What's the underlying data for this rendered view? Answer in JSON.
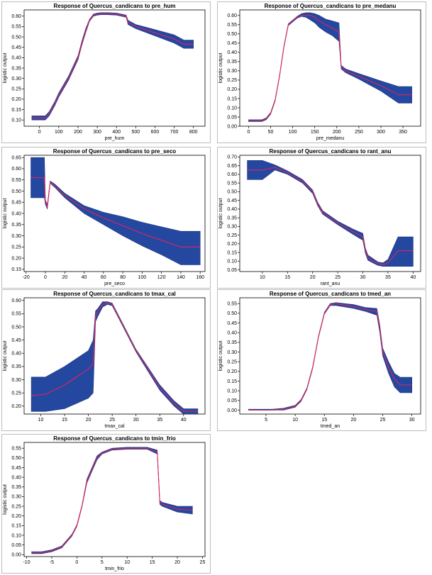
{
  "colors": {
    "band": "#2447a0",
    "band_edge": "#1b357e",
    "mean": "#e0245e"
  },
  "chart_data": [
    {
      "type": "line",
      "title": "Response of Quercus_candicans to pre_hum",
      "xlabel": "pre_hum",
      "ylabel": "logistic output",
      "xlim": [
        -80,
        860
      ],
      "ylim": [
        0.07,
        0.63
      ],
      "xticks": [
        0,
        100,
        200,
        300,
        400,
        500,
        600,
        700,
        800
      ],
      "yticks": [
        0.1,
        0.15,
        0.2,
        0.25,
        0.3,
        0.35,
        0.4,
        0.45,
        0.5,
        0.55,
        0.6
      ],
      "series": [
        {
          "x": [
            -40,
            30,
            50,
            80,
            100,
            150,
            200,
            220,
            240,
            260,
            280,
            300,
            320,
            350,
            400,
            450,
            460,
            470,
            500,
            600,
            700,
            750,
            800
          ],
          "mean": [
            0.11,
            0.11,
            0.13,
            0.18,
            0.22,
            0.3,
            0.4,
            0.47,
            0.53,
            0.58,
            0.605,
            0.61,
            0.612,
            0.612,
            0.61,
            0.6,
            0.57,
            0.565,
            0.55,
            0.52,
            0.49,
            0.465,
            0.465
          ],
          "lower": [
            0.1,
            0.1,
            0.12,
            0.17,
            0.21,
            0.29,
            0.39,
            0.46,
            0.52,
            0.575,
            0.6,
            0.605,
            0.607,
            0.607,
            0.605,
            0.595,
            0.56,
            0.555,
            0.54,
            0.505,
            0.47,
            0.445,
            0.445
          ],
          "upper": [
            0.12,
            0.12,
            0.14,
            0.19,
            0.23,
            0.31,
            0.41,
            0.48,
            0.54,
            0.585,
            0.61,
            0.615,
            0.617,
            0.617,
            0.615,
            0.605,
            0.58,
            0.575,
            0.56,
            0.535,
            0.51,
            0.485,
            0.485
          ]
        }
      ]
    },
    {
      "type": "line",
      "title": "Response of Quercus_candicans to pre_medanu",
      "xlabel": "pre_medanu",
      "ylabel": "logistic output",
      "xlim": [
        -20,
        390
      ],
      "ylim": [
        0.0,
        0.63
      ],
      "xticks": [
        0,
        50,
        100,
        150,
        200,
        250,
        300,
        350
      ],
      "yticks": [
        0.0,
        0.05,
        0.1,
        0.15,
        0.2,
        0.25,
        0.3,
        0.35,
        0.4,
        0.45,
        0.5,
        0.55,
        0.6
      ],
      "series": [
        {
          "x": [
            0,
            30,
            40,
            50,
            60,
            70,
            80,
            90,
            100,
            110,
            120,
            130,
            140,
            150,
            160,
            175,
            190,
            205,
            210,
            220,
            250,
            300,
            340,
            370
          ],
          "mean": [
            0.03,
            0.03,
            0.04,
            0.07,
            0.14,
            0.27,
            0.43,
            0.55,
            0.57,
            0.59,
            0.6,
            0.6,
            0.6,
            0.59,
            0.57,
            0.55,
            0.53,
            0.51,
            0.32,
            0.3,
            0.27,
            0.22,
            0.17,
            0.17
          ],
          "lower": [
            0.025,
            0.025,
            0.035,
            0.065,
            0.135,
            0.265,
            0.425,
            0.545,
            0.565,
            0.585,
            0.595,
            0.59,
            0.575,
            0.56,
            0.535,
            0.51,
            0.49,
            0.46,
            0.31,
            0.29,
            0.255,
            0.19,
            0.125,
            0.125
          ],
          "upper": [
            0.035,
            0.035,
            0.045,
            0.075,
            0.145,
            0.275,
            0.435,
            0.555,
            0.575,
            0.595,
            0.61,
            0.615,
            0.615,
            0.61,
            0.6,
            0.58,
            0.57,
            0.56,
            0.33,
            0.31,
            0.285,
            0.245,
            0.215,
            0.215
          ]
        }
      ]
    },
    {
      "type": "line",
      "title": "Response of Quercus_candicans to pre_seco",
      "xlabel": "pre_seco",
      "ylabel": "logistic output",
      "xlim": [
        -22,
        165
      ],
      "ylim": [
        0.14,
        0.66
      ],
      "xticks": [
        -20,
        0,
        20,
        40,
        60,
        80,
        100,
        120,
        140,
        160
      ],
      "yticks": [
        0.15,
        0.2,
        0.25,
        0.3,
        0.35,
        0.4,
        0.45,
        0.5,
        0.55,
        0.6,
        0.65
      ],
      "series": [
        {
          "x": [
            -15,
            -1,
            0,
            2,
            5,
            10,
            20,
            40,
            60,
            80,
            100,
            120,
            140,
            160
          ],
          "mean": [
            0.56,
            0.56,
            0.45,
            0.43,
            0.54,
            0.52,
            0.48,
            0.42,
            0.38,
            0.345,
            0.31,
            0.28,
            0.25,
            0.25
          ],
          "lower": [
            0.47,
            0.47,
            0.44,
            0.42,
            0.535,
            0.515,
            0.47,
            0.4,
            0.35,
            0.3,
            0.255,
            0.215,
            0.17,
            0.17
          ],
          "upper": [
            0.65,
            0.65,
            0.46,
            0.44,
            0.545,
            0.53,
            0.49,
            0.435,
            0.405,
            0.385,
            0.36,
            0.34,
            0.32,
            0.32
          ]
        }
      ]
    },
    {
      "type": "line",
      "title": "Response of Quercus_candicans to rant_anu",
      "xlabel": "rant_anu",
      "ylabel": "logistic output",
      "xlim": [
        5.5,
        41.5
      ],
      "ylim": [
        0.04,
        0.71
      ],
      "xticks": [
        10,
        15,
        20,
        25,
        30,
        35,
        40
      ],
      "yticks": [
        0.05,
        0.1,
        0.15,
        0.2,
        0.25,
        0.3,
        0.35,
        0.4,
        0.45,
        0.5,
        0.55,
        0.6,
        0.65,
        0.7
      ],
      "series": [
        {
          "x": [
            7,
            10,
            12.5,
            15,
            18,
            20,
            21,
            22,
            25,
            28,
            30,
            30.5,
            31,
            32,
            33,
            34,
            35,
            37,
            40
          ],
          "mean": [
            0.625,
            0.625,
            0.64,
            0.61,
            0.56,
            0.5,
            0.43,
            0.38,
            0.32,
            0.27,
            0.24,
            0.16,
            0.12,
            0.1,
            0.085,
            0.08,
            0.09,
            0.16,
            0.16
          ],
          "lower": [
            0.57,
            0.57,
            0.625,
            0.6,
            0.55,
            0.49,
            0.42,
            0.37,
            0.31,
            0.255,
            0.22,
            0.145,
            0.105,
            0.09,
            0.075,
            0.07,
            0.07,
            0.07,
            0.07
          ],
          "upper": [
            0.68,
            0.68,
            0.655,
            0.62,
            0.57,
            0.51,
            0.44,
            0.39,
            0.33,
            0.285,
            0.26,
            0.175,
            0.135,
            0.115,
            0.095,
            0.09,
            0.11,
            0.24,
            0.24
          ]
        }
      ]
    },
    {
      "type": "line",
      "title": "Response of Quercus_candicans to tmax_cal",
      "xlabel": "tmax_cal",
      "ylabel": "logistic output",
      "xlim": [
        6.5,
        44.5
      ],
      "ylim": [
        0.17,
        0.61
      ],
      "xticks": [
        10,
        15,
        20,
        25,
        30,
        35,
        40
      ],
      "yticks": [
        0.2,
        0.25,
        0.3,
        0.35,
        0.4,
        0.45,
        0.5,
        0.55,
        0.6
      ],
      "series": [
        {
          "x": [
            8,
            11,
            15,
            20,
            21,
            21.5,
            22,
            23,
            24,
            25,
            26,
            30,
            35,
            38,
            40,
            43
          ],
          "mean": [
            0.24,
            0.245,
            0.28,
            0.34,
            0.36,
            0.54,
            0.56,
            0.585,
            0.59,
            0.585,
            0.55,
            0.41,
            0.27,
            0.21,
            0.18,
            0.18
          ],
          "lower": [
            0.18,
            0.18,
            0.19,
            0.23,
            0.25,
            0.52,
            0.54,
            0.575,
            0.585,
            0.58,
            0.545,
            0.405,
            0.26,
            0.2,
            0.17,
            0.17
          ],
          "upper": [
            0.31,
            0.31,
            0.35,
            0.41,
            0.45,
            0.56,
            0.57,
            0.595,
            0.595,
            0.59,
            0.555,
            0.415,
            0.28,
            0.22,
            0.19,
            0.19
          ]
        }
      ]
    },
    {
      "type": "line",
      "title": "Response of Quercus_candicans to tmed_an",
      "xlabel": "tmed_an",
      "ylabel": "logistic output",
      "xlim": [
        0.5,
        31.5
      ],
      "ylim": [
        -0.02,
        0.58
      ],
      "xticks": [
        5,
        10,
        15,
        20,
        25,
        30
      ],
      "yticks": [
        0.0,
        0.05,
        0.1,
        0.15,
        0.2,
        0.25,
        0.3,
        0.35,
        0.4,
        0.45,
        0.5,
        0.55
      ],
      "series": [
        {
          "x": [
            2,
            6,
            8,
            10,
            11,
            12,
            13,
            14,
            15,
            16,
            17,
            20,
            22,
            24,
            24.5,
            25,
            26,
            27,
            28,
            30
          ],
          "mean": [
            0.0,
            0.0,
            0.005,
            0.02,
            0.05,
            0.11,
            0.22,
            0.38,
            0.5,
            0.545,
            0.55,
            0.535,
            0.52,
            0.51,
            0.42,
            0.3,
            0.22,
            0.16,
            0.13,
            0.13
          ],
          "lower": [
            0.0,
            0.0,
            0.0,
            0.015,
            0.045,
            0.105,
            0.215,
            0.375,
            0.495,
            0.54,
            0.54,
            0.525,
            0.51,
            0.49,
            0.4,
            0.28,
            0.19,
            0.12,
            0.09,
            0.09
          ],
          "upper": [
            0.005,
            0.005,
            0.01,
            0.025,
            0.055,
            0.115,
            0.225,
            0.385,
            0.505,
            0.55,
            0.555,
            0.545,
            0.53,
            0.525,
            0.44,
            0.32,
            0.25,
            0.19,
            0.17,
            0.17
          ]
        }
      ]
    },
    {
      "type": "line",
      "title": "Response of Quercus_candicans to tmin_frio",
      "xlabel": "tmin_frio",
      "ylabel": "logistic output",
      "xlim": [
        -10.5,
        25.5
      ],
      "ylim": [
        -0.01,
        0.58
      ],
      "xticks": [
        -10,
        -5,
        0,
        5,
        10,
        15,
        20,
        25
      ],
      "yticks": [
        0.0,
        0.05,
        0.1,
        0.15,
        0.2,
        0.25,
        0.3,
        0.35,
        0.4,
        0.45,
        0.5,
        0.55
      ],
      "series": [
        {
          "x": [
            -9,
            -7,
            -5,
            -3,
            -1,
            0,
            1,
            2,
            3,
            4,
            5,
            7,
            10,
            14,
            16,
            16.5,
            17,
            20,
            23
          ],
          "mean": [
            0.01,
            0.01,
            0.02,
            0.04,
            0.1,
            0.15,
            0.25,
            0.38,
            0.44,
            0.5,
            0.525,
            0.545,
            0.55,
            0.55,
            0.53,
            0.27,
            0.26,
            0.235,
            0.23
          ],
          "lower": [
            0.005,
            0.005,
            0.015,
            0.035,
            0.095,
            0.145,
            0.245,
            0.37,
            0.43,
            0.49,
            0.52,
            0.54,
            0.545,
            0.545,
            0.52,
            0.26,
            0.25,
            0.22,
            0.21
          ],
          "upper": [
            0.015,
            0.015,
            0.025,
            0.045,
            0.105,
            0.155,
            0.255,
            0.39,
            0.45,
            0.51,
            0.53,
            0.55,
            0.555,
            0.555,
            0.54,
            0.28,
            0.27,
            0.25,
            0.25
          ]
        }
      ]
    }
  ]
}
